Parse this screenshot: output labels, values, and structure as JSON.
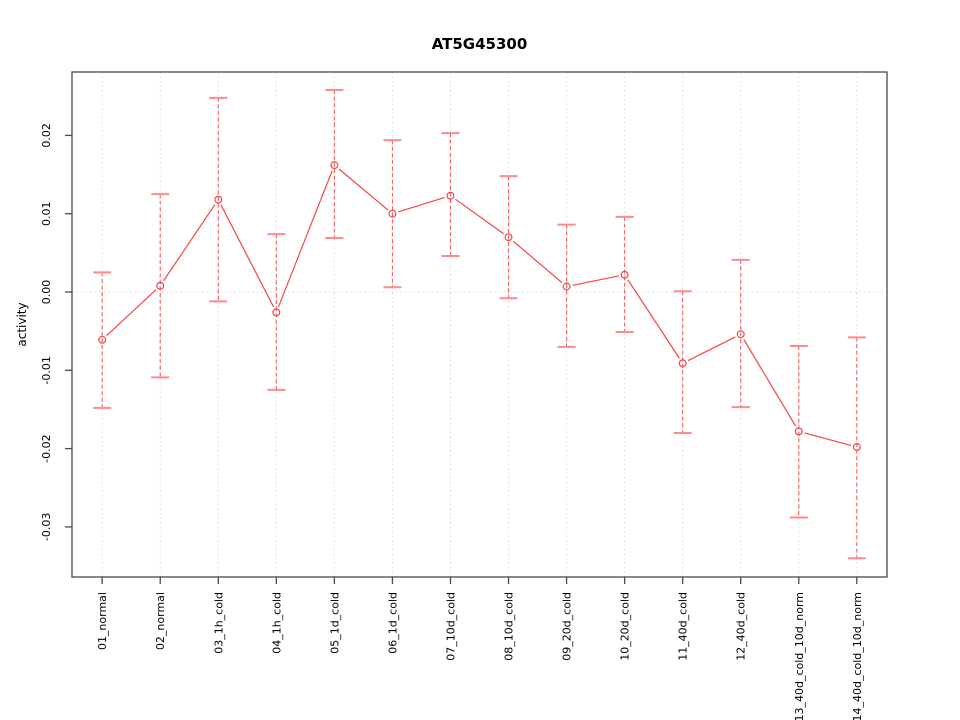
{
  "chart_data": {
    "type": "line",
    "title": "AT5G45300",
    "xlabel": "",
    "ylabel": "activity",
    "categories": [
      "01_normal",
      "02_normal",
      "03_1h_cold",
      "04_1h_cold",
      "05_1d_cold",
      "06_1d_cold",
      "07_10d_cold",
      "08_10d_cold",
      "09_20d_cold",
      "10_20d_cold",
      "11_40d_cold",
      "12_40d_cold",
      "13_40d_cold_10d_norm",
      "14_40d_cold_10d_norm"
    ],
    "series": [
      {
        "name": "activity",
        "values": [
          -0.0061,
          0.0008,
          0.0118,
          -0.0026,
          0.0162,
          0.01,
          0.0123,
          0.007,
          0.0007,
          0.0022,
          -0.0091,
          -0.0054,
          -0.0178,
          -0.0198
        ],
        "error_high": [
          0.0025,
          0.0125,
          0.0248,
          0.0074,
          0.0258,
          0.0194,
          0.0203,
          0.0148,
          0.0086,
          0.0096,
          0.0001,
          0.0041,
          -0.0069,
          -0.0058
        ],
        "error_low": [
          -0.0148,
          -0.0109,
          -0.0012,
          -0.0125,
          0.0069,
          0.0006,
          0.0046,
          -0.0008,
          -0.007,
          -0.0051,
          -0.018,
          -0.0147,
          -0.0288,
          -0.034
        ]
      }
    ],
    "ylim": [
      -0.0364,
      0.0281
    ],
    "xlim": [
      0.48,
      14.52
    ],
    "ytick_values": [
      0.02,
      0.01,
      0.0,
      -0.01,
      -0.02,
      -0.03
    ],
    "ytick_labels": [
      "0.02",
      "0.01",
      "0.00",
      "-0.01",
      "-0.02",
      "-0.03"
    ],
    "grid": {
      "vertical_dotted_per_category": true,
      "horizontal_zero_line": true,
      "legend": "none"
    },
    "marker": "open-circle",
    "colors": {
      "data_line": "#f84545",
      "marker": "#f84545",
      "errorbar_line": "#f75f5f",
      "errorbar_cap": "#ff8a8a",
      "gridline": "#d9d9d9",
      "zero_line": "#dcdcdc",
      "box": "#4a4a4a",
      "tick": "#4a4a4a",
      "text": "#000000"
    }
  }
}
